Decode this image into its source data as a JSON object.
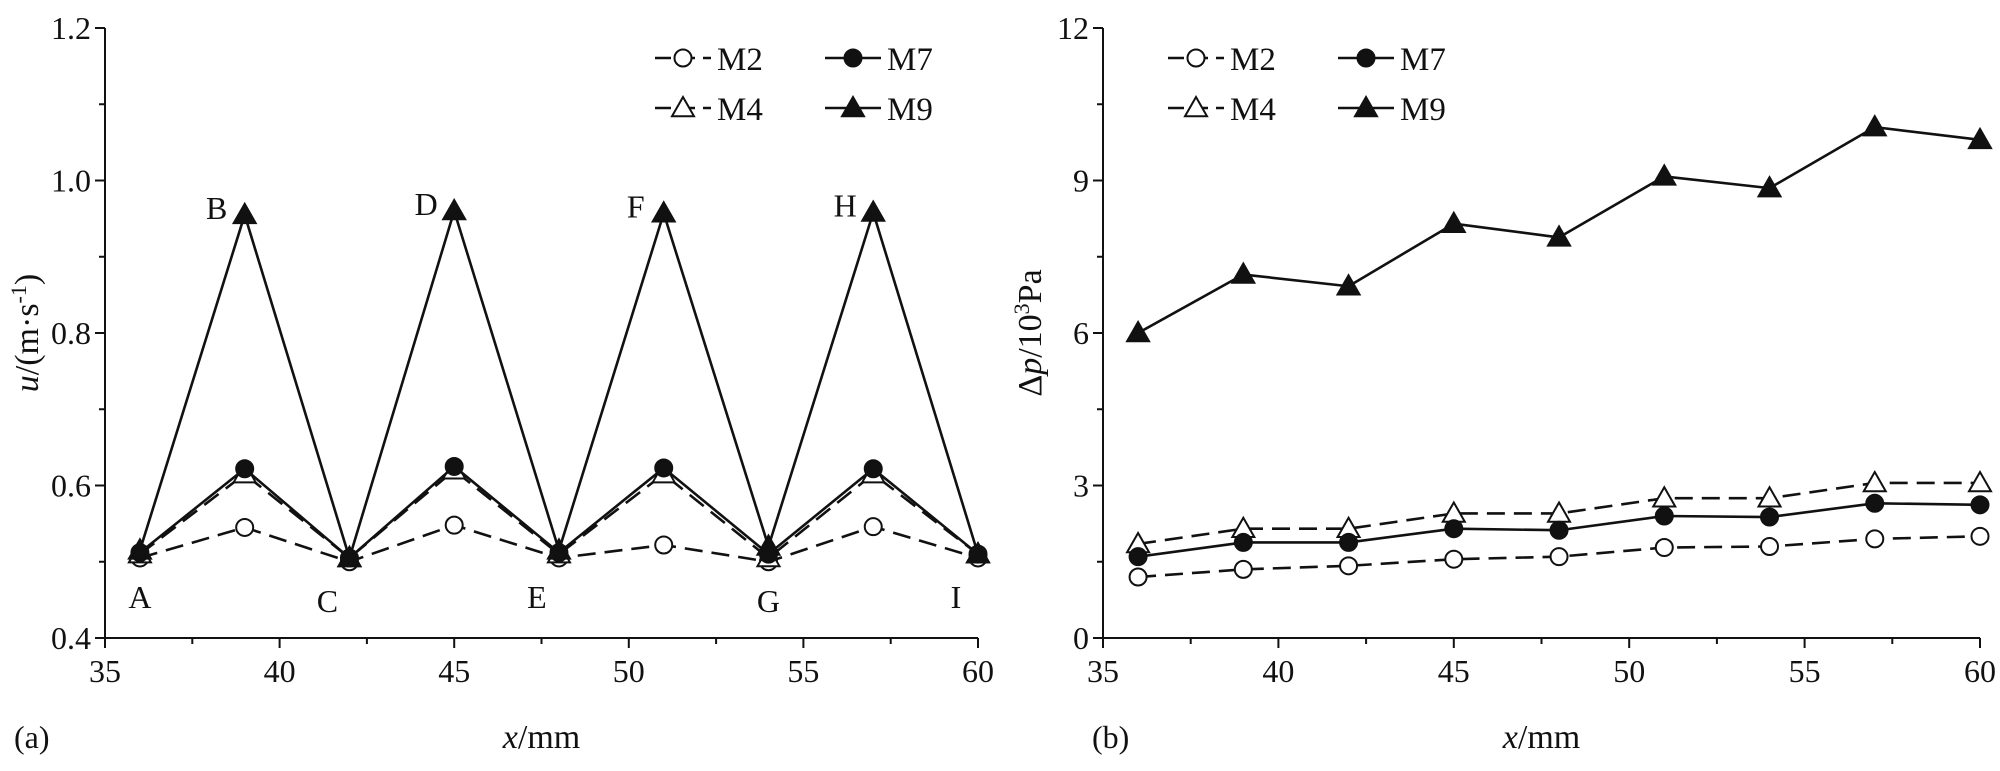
{
  "chart_data": [
    {
      "type": "line",
      "panel_label": "(a)",
      "xlabel_italic": "x",
      "xlabel_unit": "/mm",
      "ylabel_italic": "u",
      "ylabel_unit": "/(m·s",
      "ylabel_sup": "-1",
      "ylabel_close": ")",
      "xlim": [
        35,
        60
      ],
      "ylim": [
        0.4,
        1.2
      ],
      "xticks": [
        35,
        40,
        45,
        50,
        55,
        60
      ],
      "yticks": [
        0.4,
        0.6,
        0.8,
        1.0,
        1.2
      ],
      "ytick_labels": [
        "0.4",
        "0.6",
        "0.8",
        "1.0",
        "1.2"
      ],
      "x": [
        36,
        39,
        42,
        45,
        48,
        51,
        54,
        57,
        60
      ],
      "series": [
        {
          "name": "M2",
          "style": "dashed",
          "marker": "circle-open",
          "values": [
            0.505,
            0.545,
            0.5,
            0.548,
            0.505,
            0.522,
            0.5,
            0.546,
            0.505
          ]
        },
        {
          "name": "M4",
          "style": "dashed",
          "marker": "triangle-open",
          "values": [
            0.51,
            0.615,
            0.505,
            0.62,
            0.51,
            0.615,
            0.505,
            0.615,
            0.51
          ]
        },
        {
          "name": "M7",
          "style": "solid",
          "marker": "circle-filled",
          "values": [
            0.512,
            0.622,
            0.505,
            0.625,
            0.512,
            0.623,
            0.51,
            0.622,
            0.51
          ]
        },
        {
          "name": "M9",
          "style": "solid",
          "marker": "triangle-filled",
          "values": [
            0.515,
            0.955,
            0.505,
            0.96,
            0.515,
            0.957,
            0.52,
            0.958,
            0.51
          ]
        }
      ],
      "point_labels": [
        {
          "text": "A",
          "x": 36,
          "y": 0.505,
          "pos": "below"
        },
        {
          "text": "B",
          "x": 39,
          "y": 0.955,
          "pos": "upper-left"
        },
        {
          "text": "C",
          "x": 42,
          "y": 0.5,
          "pos": "below-left"
        },
        {
          "text": "D",
          "x": 45,
          "y": 0.96,
          "pos": "upper-left"
        },
        {
          "text": "E",
          "x": 48,
          "y": 0.505,
          "pos": "below-left"
        },
        {
          "text": "F",
          "x": 51,
          "y": 0.957,
          "pos": "upper-left"
        },
        {
          "text": "G",
          "x": 54,
          "y": 0.5,
          "pos": "below"
        },
        {
          "text": "H",
          "x": 57,
          "y": 0.958,
          "pos": "upper-left"
        },
        {
          "text": "I",
          "x": 60,
          "y": 0.505,
          "pos": "below-left"
        }
      ],
      "legend_position": "top-right"
    },
    {
      "type": "line",
      "panel_label": "(b)",
      "xlabel_italic": "x",
      "xlabel_unit": "/mm",
      "ylabel_prefix": "Δ",
      "ylabel_italic": "p",
      "ylabel_unit": "/10",
      "ylabel_sup": "3",
      "ylabel_close": "Pa",
      "xlim": [
        35,
        60
      ],
      "ylim": [
        0,
        12
      ],
      "xticks": [
        35,
        40,
        45,
        50,
        55,
        60
      ],
      "yticks": [
        0,
        3,
        6,
        9,
        12
      ],
      "ytick_labels": [
        "0",
        "3",
        "6",
        "9",
        "12"
      ],
      "x": [
        36,
        39,
        42,
        45,
        48,
        51,
        54,
        57,
        60
      ],
      "series": [
        {
          "name": "M2",
          "style": "dashed",
          "marker": "circle-open",
          "values": [
            1.2,
            1.35,
            1.42,
            1.55,
            1.6,
            1.78,
            1.8,
            1.95,
            2.0
          ]
        },
        {
          "name": "M4",
          "style": "dashed",
          "marker": "triangle-open",
          "values": [
            1.85,
            2.15,
            2.15,
            2.45,
            2.45,
            2.75,
            2.75,
            3.05,
            3.05
          ]
        },
        {
          "name": "M7",
          "style": "solid",
          "marker": "circle-filled",
          "values": [
            1.6,
            1.88,
            1.88,
            2.15,
            2.12,
            2.4,
            2.38,
            2.65,
            2.62
          ]
        },
        {
          "name": "M9",
          "style": "solid",
          "marker": "triangle-filled",
          "values": [
            6.0,
            7.15,
            6.92,
            8.15,
            7.88,
            9.08,
            8.85,
            10.05,
            9.8
          ]
        }
      ],
      "legend_position": "top-left"
    }
  ]
}
